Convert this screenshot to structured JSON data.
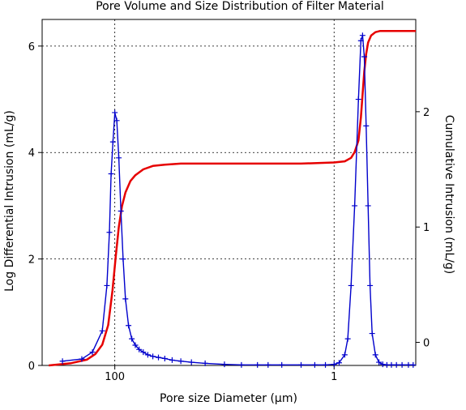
{
  "chart_data": {
    "type": "line",
    "title": "Pore Volume and Size Distribution of Filter Material",
    "xlabel": "Pore size Diameter (µm)",
    "ylabel_left": "Log Differential Intrusion (mL/g)",
    "ylabel_right": "Cumulative Intrusion (mL/g)",
    "x_scale": "log",
    "x_reversed": true,
    "xlim": [
      460,
      0.18
    ],
    "ylim_left": [
      0,
      6.5
    ],
    "ylim_right": [
      -0.2,
      2.8
    ],
    "grid": true,
    "x_ticks": [
      {
        "value": 100,
        "label": "100"
      },
      {
        "value": 1,
        "label": "1"
      }
    ],
    "y_ticks_left": [
      {
        "value": 0,
        "label": "0"
      },
      {
        "value": 2,
        "label": "2"
      },
      {
        "value": 4,
        "label": "4"
      },
      {
        "value": 6,
        "label": "6"
      }
    ],
    "y_ticks_right": [
      {
        "value": 0,
        "label": "0"
      },
      {
        "value": 1,
        "label": "1"
      },
      {
        "value": 2,
        "label": "2"
      }
    ],
    "series": [
      {
        "axis": "left",
        "color": "#0000cc",
        "marker": "plus",
        "x": [
          300,
          200,
          160,
          130,
          118,
          112,
          108,
          104,
          100,
          96,
          92,
          88,
          84,
          80,
          75,
          70,
          65,
          60,
          55,
          50,
          45,
          40,
          35,
          30,
          25,
          20,
          15,
          10,
          7,
          5,
          4,
          3,
          2,
          1.5,
          1.2,
          1.0,
          0.9,
          0.8,
          0.75,
          0.7,
          0.65,
          0.6,
          0.57,
          0.55,
          0.53,
          0.51,
          0.49,
          0.47,
          0.45,
          0.42,
          0.39,
          0.36,
          0.33,
          0.3,
          0.27,
          0.24,
          0.21,
          0.19
        ],
        "y": [
          0.08,
          0.12,
          0.25,
          0.65,
          1.5,
          2.5,
          3.6,
          4.2,
          4.75,
          4.6,
          3.9,
          2.9,
          2.0,
          1.25,
          0.75,
          0.5,
          0.38,
          0.3,
          0.25,
          0.2,
          0.17,
          0.15,
          0.13,
          0.1,
          0.08,
          0.06,
          0.04,
          0.02,
          0.01,
          0.01,
          0.01,
          0.01,
          0.01,
          0.01,
          0.01,
          0.02,
          0.05,
          0.2,
          0.5,
          1.5,
          3.0,
          5.0,
          6.1,
          6.2,
          5.8,
          4.5,
          3.0,
          1.5,
          0.6,
          0.2,
          0.06,
          0.02,
          0.01,
          0.01,
          0.01,
          0.01,
          0.01,
          0.01
        ]
      },
      {
        "axis": "right",
        "color": "#e60000",
        "marker": "none",
        "x": [
          400,
          250,
          180,
          150,
          130,
          115,
          105,
          98,
          92,
          86,
          80,
          72,
          65,
          55,
          45,
          35,
          25,
          15,
          8,
          4,
          2,
          1,
          0.8,
          0.7,
          0.65,
          0.6,
          0.57,
          0.55,
          0.53,
          0.51,
          0.49,
          0.46,
          0.42,
          0.38,
          0.33,
          0.28,
          0.22,
          0.18
        ],
        "y": [
          -0.2,
          -0.18,
          -0.15,
          -0.1,
          -0.02,
          0.15,
          0.45,
          0.75,
          1.0,
          1.18,
          1.3,
          1.4,
          1.45,
          1.5,
          1.53,
          1.54,
          1.55,
          1.55,
          1.55,
          1.55,
          1.55,
          1.56,
          1.57,
          1.6,
          1.65,
          1.75,
          1.95,
          2.15,
          2.35,
          2.5,
          2.6,
          2.66,
          2.69,
          2.7,
          2.7,
          2.7,
          2.7,
          2.7
        ]
      }
    ]
  }
}
